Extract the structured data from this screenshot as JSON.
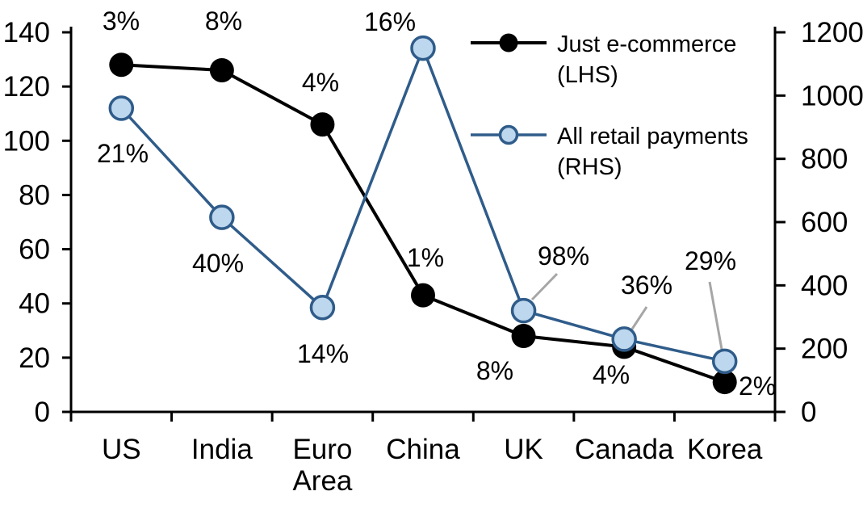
{
  "chart_data": {
    "type": "line",
    "title": "",
    "categories": [
      "US",
      "India",
      "Euro Area",
      "China",
      "UK",
      "Canada",
      "Korea"
    ],
    "categories_display": [
      [
        "US"
      ],
      [
        "India"
      ],
      [
        "Euro",
        "Area"
      ],
      [
        "China"
      ],
      [
        "UK"
      ],
      [
        "Canada"
      ],
      [
        "Korea"
      ]
    ],
    "series": [
      {
        "name": "Just e-commerce (LHS)",
        "axis": "left",
        "line_color": "#000000",
        "marker_fill": "#000000",
        "marker_stroke": "#000000",
        "values": [
          128,
          126,
          106,
          43,
          28,
          24,
          11
        ],
        "point_labels": [
          "3%",
          "8%",
          "4%",
          "1%",
          "8%",
          "4%",
          "2%"
        ]
      },
      {
        "name": "All retail payments (RHS)",
        "axis": "right",
        "line_color": "#2F5C8A",
        "marker_fill": "#BDD7EE",
        "marker_stroke": "#2F5C8A",
        "values": [
          960,
          615,
          330,
          1150,
          320,
          230,
          160
        ],
        "point_labels": [
          "21%",
          "40%",
          "14%",
          "16%",
          "98%",
          "36%",
          "29%"
        ]
      }
    ],
    "left_axis": {
      "min": 0,
      "max": 140,
      "tick_values": [
        0,
        20,
        40,
        60,
        80,
        100,
        120,
        140
      ],
      "tick_labels": [
        "0",
        "20",
        "40",
        "60",
        "80",
        "100",
        "120",
        "140"
      ]
    },
    "right_axis": {
      "min": 0,
      "max": 1200,
      "tick_values": [
        0,
        200,
        400,
        600,
        800,
        1000,
        1200
      ],
      "tick_labels": [
        "0",
        "200",
        "400",
        "600",
        "800",
        "1000",
        "1200"
      ]
    },
    "legend": {
      "position": "top-right",
      "entries": [
        {
          "label_lines": [
            "Just e-commerce",
            "(LHS)"
          ]
        },
        {
          "label_lines": [
            "All retail payments",
            "(RHS)"
          ]
        }
      ]
    },
    "grid": "off",
    "annotation_color": "#A6A6A6",
    "axis_color": "#000000",
    "background": "#FFFFFF"
  }
}
